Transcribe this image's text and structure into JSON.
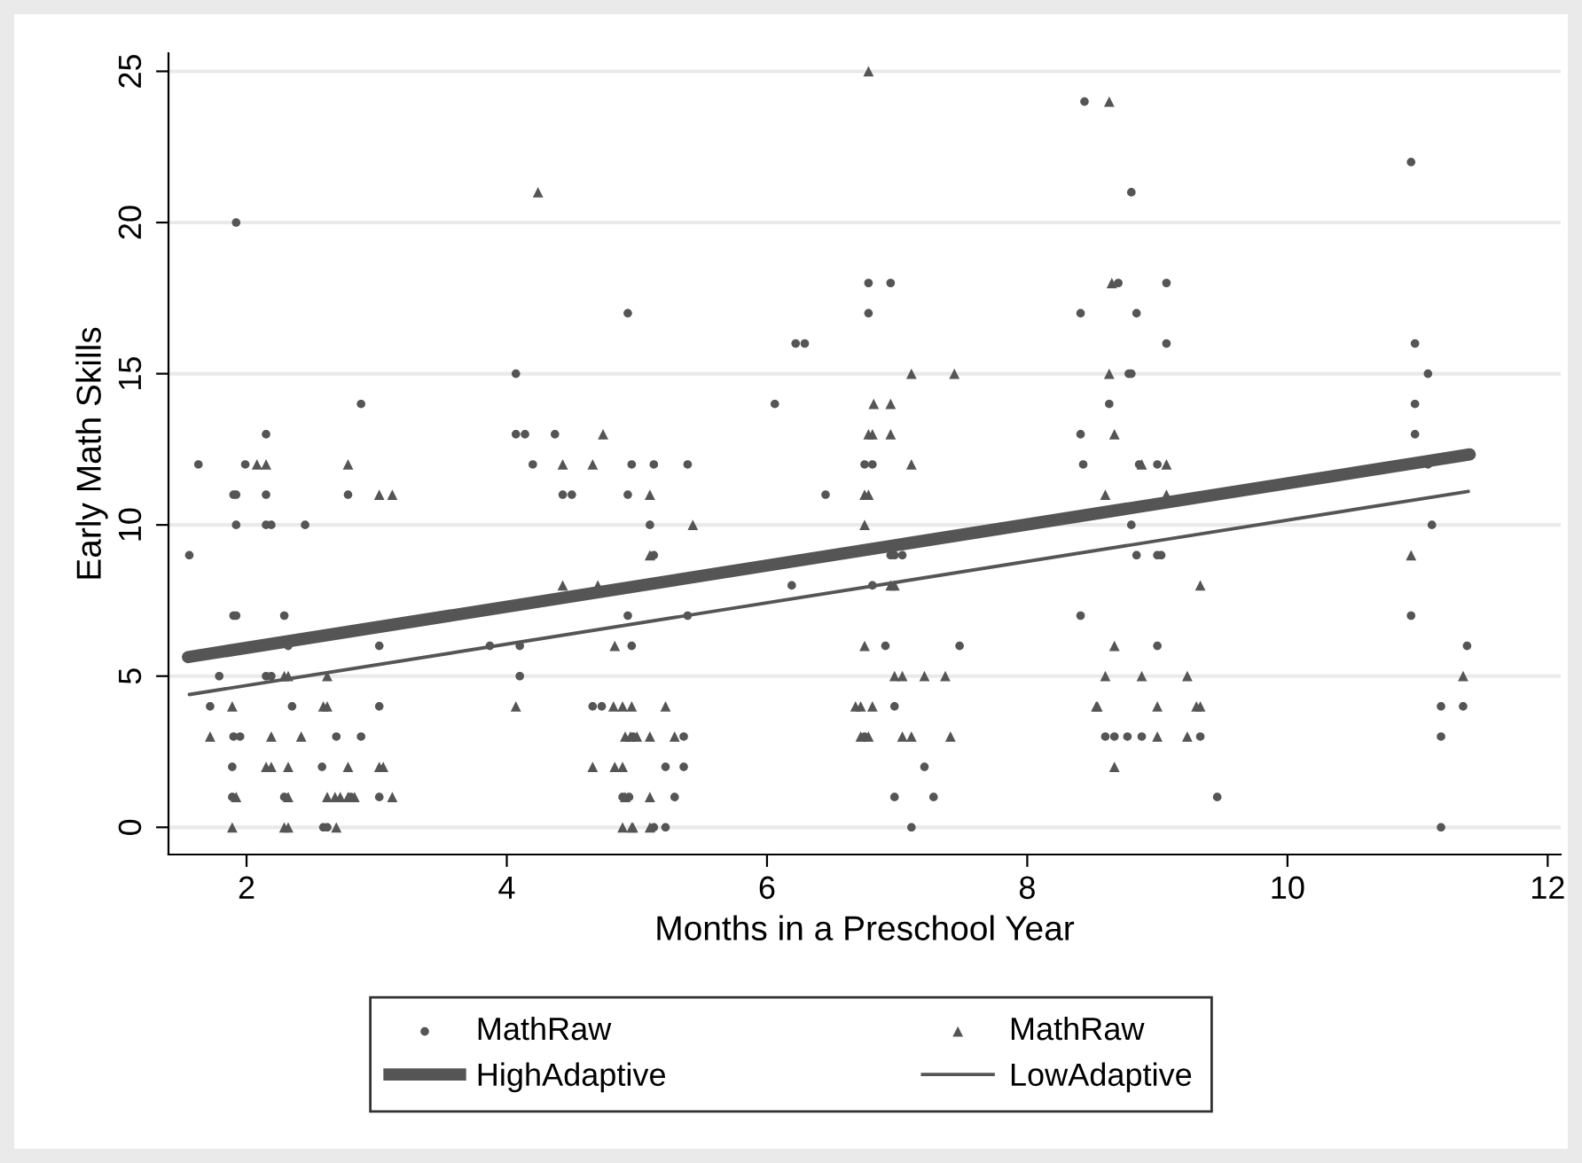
{
  "chart_data": {
    "type": "scatter",
    "xlabel": "Months in a Preschool Year",
    "ylabel": "Early Math Skills",
    "xlim": [
      1.4,
      12.1
    ],
    "ylim": [
      -0.9,
      25.6
    ],
    "xticks": [
      2,
      4,
      6,
      8,
      10,
      12
    ],
    "yticks": [
      0,
      5,
      10,
      15,
      20,
      25
    ],
    "grid": "y",
    "legend": "bottom",
    "series": [
      {
        "name": "MathRaw",
        "marker": "circle",
        "color": "#555555",
        "x": [
          1.92,
          4.93,
          4.07,
          2.88,
          2.15,
          4.07,
          4.14,
          4.37,
          8.44,
          6.78,
          6.95,
          6.78,
          8.41,
          6.22,
          6.29,
          6.06,
          8.41,
          10.95,
          8.8,
          8.7,
          9.07,
          8.84,
          9.07,
          10.98,
          8.78,
          8.8,
          11.08,
          8.63,
          10.98,
          10.98,
          1.63,
          1.99,
          4.2,
          4.96,
          1.9,
          1.92,
          2.15,
          2.78,
          4.43,
          4.5,
          4.93,
          1.92,
          2.15,
          2.19,
          2.45,
          1.56,
          1.9,
          1.92,
          2.29,
          4.93,
          2.32,
          3.02,
          3.87,
          4.1,
          4.96,
          1.79,
          2.15,
          2.19,
          4.1,
          1.72,
          2.35,
          3.02,
          4.66,
          4.73,
          1.9,
          1.95,
          2.69,
          2.88,
          1.89,
          2.58,
          1.89,
          2.29,
          2.8,
          3.02,
          4.89,
          2.59,
          2.62,
          5.13,
          5.39,
          6.75,
          6.81,
          8.43,
          6.45,
          5.1,
          5.13,
          6.95,
          6.98,
          7.04,
          6.19,
          6.81,
          5.39,
          8.41,
          6.91,
          7.48,
          6.98,
          4.97,
          5.36,
          6.75,
          5.22,
          5.36,
          7.21,
          4.94,
          5.29,
          6.98,
          7.28,
          5.13,
          5.22,
          7.11,
          8.86,
          9.0,
          11.08,
          8.8,
          11.11,
          8.84,
          9.0,
          9.03,
          10.95,
          9.0,
          11.38,
          11.18,
          11.35,
          8.6,
          8.67,
          8.77,
          8.88,
          9.33,
          11.18,
          9.46,
          11.18
        ],
        "values": [
          20,
          17,
          15,
          14,
          13,
          13,
          13,
          13,
          24,
          18,
          18,
          17,
          17,
          16,
          16,
          14,
          13,
          22,
          21,
          18,
          18,
          17,
          16,
          16,
          15,
          15,
          15,
          14,
          14,
          13,
          12,
          12,
          12,
          12,
          11,
          11,
          11,
          11,
          11,
          11,
          11,
          10,
          10,
          10,
          10,
          9,
          7,
          7,
          7,
          7,
          6,
          6,
          6,
          6,
          6,
          5,
          5,
          5,
          5,
          4,
          4,
          4,
          4,
          4,
          3,
          3,
          3,
          3,
          2,
          2,
          1,
          1,
          1,
          1,
          1,
          0,
          0,
          12,
          12,
          12,
          12,
          12,
          11,
          10,
          9,
          9,
          9,
          9,
          8,
          8,
          7,
          7,
          6,
          6,
          4,
          3,
          3,
          3,
          2,
          2,
          2,
          1,
          1,
          1,
          1,
          0,
          0,
          0,
          12,
          12,
          12,
          10,
          10,
          9,
          9,
          9,
          7,
          6,
          6,
          4,
          4,
          3,
          3,
          3,
          3,
          3,
          3,
          1,
          0
        ]
      },
      {
        "name": "MathRaw",
        "marker": "triangle",
        "color": "#555555",
        "x": [
          4.24,
          4.74,
          6.78,
          7.11,
          7.44,
          6.82,
          6.95,
          6.78,
          6.81,
          6.95,
          8.63,
          8.65,
          8.63,
          8.67,
          2.08,
          2.15,
          2.78,
          4.43,
          4.66,
          3.02,
          3.12,
          4.43,
          4.7,
          4.83,
          2.29,
          2.32,
          2.62,
          1.89,
          2.59,
          2.62,
          4.07,
          4.82,
          4.89,
          4.96,
          1.72,
          2.19,
          2.42,
          4.91,
          4.95,
          2.15,
          2.19,
          2.32,
          2.78,
          3.02,
          3.05,
          4.66,
          4.83,
          4.89,
          1.92,
          2.32,
          2.62,
          2.68,
          2.72,
          2.78,
          2.83,
          3.12,
          4.91,
          1.89,
          2.29,
          2.32,
          2.69,
          4.89,
          4.96,
          7.11,
          5.1,
          6.75,
          6.78,
          5.43,
          6.75,
          5.1,
          6.95,
          6.98,
          6.75,
          6.98,
          7.04,
          7.21,
          7.37,
          5.22,
          6.68,
          6.72,
          6.81,
          8.53,
          5.0,
          5.1,
          5.29,
          6.72,
          6.78,
          7.04,
          7.11,
          7.41,
          5.1,
          4.97,
          5.1,
          8.88,
          9.07,
          8.6,
          9.07,
          10.95,
          9.33,
          8.67,
          8.6,
          8.88,
          9.23,
          11.35,
          8.54,
          9.0,
          9.3,
          9.33,
          9.0,
          9.23,
          8.67
        ],
        "values": [
          21,
          13,
          25,
          15,
          15,
          14,
          14,
          13,
          13,
          13,
          24,
          18,
          15,
          13,
          12,
          12,
          12,
          12,
          12,
          11,
          11,
          8,
          8,
          6,
          5,
          5,
          5,
          4,
          4,
          4,
          4,
          4,
          4,
          4,
          3,
          3,
          3,
          3,
          3,
          2,
          2,
          2,
          2,
          2,
          2,
          2,
          2,
          2,
          1,
          1,
          1,
          1,
          1,
          1,
          1,
          1,
          1,
          0,
          0,
          0,
          0,
          0,
          0,
          12,
          11,
          11,
          11,
          10,
          10,
          9,
          8,
          8,
          6,
          5,
          5,
          5,
          5,
          4,
          4,
          4,
          4,
          4,
          3,
          3,
          3,
          3,
          3,
          3,
          3,
          3,
          1,
          0,
          0,
          12,
          12,
          11,
          11,
          9,
          8,
          6,
          5,
          5,
          5,
          5,
          4,
          4,
          4,
          4,
          3,
          3,
          2
        ]
      },
      {
        "name": "HighAdaptive",
        "type": "line",
        "marker": "none",
        "line_style": "solid",
        "color": "#555555",
        "x": [
          1.55,
          11.4
        ],
        "values": [
          5.63,
          12.33
        ]
      },
      {
        "name": "LowAdaptive",
        "type": "line",
        "marker": "none",
        "line_style": "solid",
        "color": "#555555",
        "x": [
          1.56,
          11.39
        ],
        "values": [
          4.39,
          11.11
        ]
      }
    ]
  }
}
